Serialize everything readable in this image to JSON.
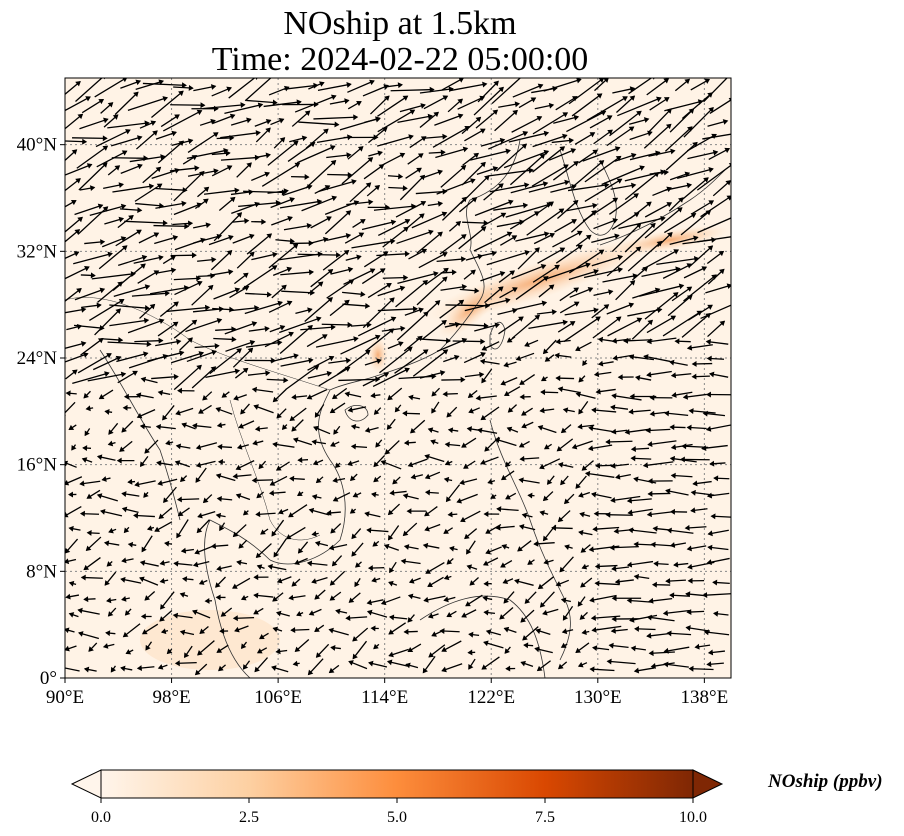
{
  "title_line1": "NOship at 1.5km",
  "title_line2": "Time: 2024-02-22 05:00:00",
  "map": {
    "lon_range": [
      90,
      140
    ],
    "lat_range": [
      0,
      45
    ],
    "x_ticks": [
      "90°E",
      "98°E",
      "106°E",
      "114°E",
      "122°E",
      "130°E",
      "138°E"
    ],
    "y_ticks": [
      "0°",
      "8°N",
      "16°N",
      "24°N",
      "32°N",
      "40°N"
    ],
    "gridlines": "dotted",
    "vectors": "wind arrows"
  },
  "colorbar": {
    "label": "NOship (ppbv)",
    "min": 0.0,
    "max": 10.0,
    "tick_labels": [
      "0.0",
      "2.5",
      "5.0",
      "7.5",
      "10.0"
    ],
    "colormap": [
      "#fff5eb",
      "#fdd0a2",
      "#fd8d3c",
      "#d94801",
      "#7f2704"
    ],
    "extend": "both"
  }
}
